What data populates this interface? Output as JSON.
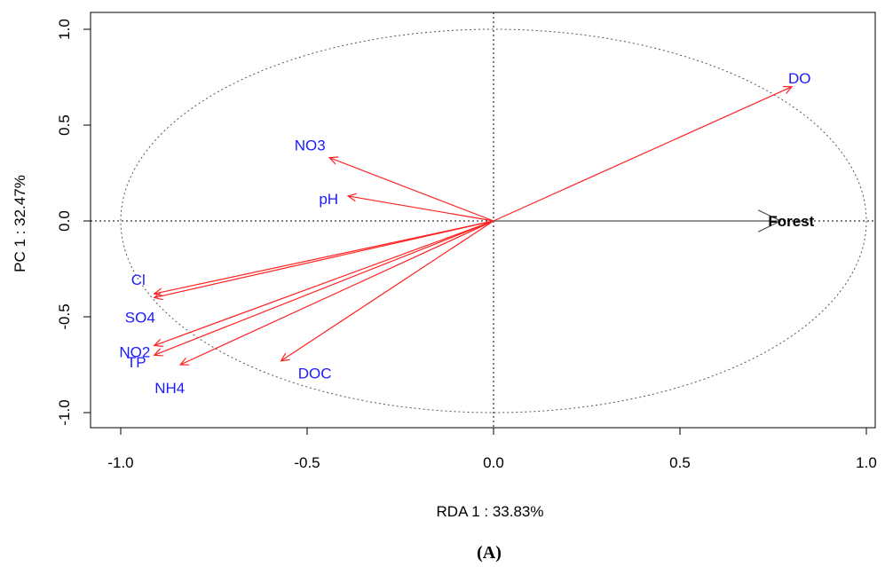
{
  "chart_data": {
    "type": "scatter",
    "subtype": "rda-biplot",
    "xlabel": "RDA 1 : 33.83%",
    "ylabel": "PC 1 : 32.47%",
    "xlim": [
      -1.1,
      1.03
    ],
    "ylim": [
      -1.08,
      1.1
    ],
    "x_ticks": [
      -1.0,
      -0.5,
      0.0,
      0.5,
      1.0
    ],
    "x_tick_labels": [
      "-1.0",
      "-0.5",
      "0.0",
      "0.5",
      "1.0"
    ],
    "y_ticks": [
      -1.0,
      -0.5,
      0.0,
      0.5,
      1.0
    ],
    "y_tick_labels": [
      "-1.0",
      "-0.5",
      "0.0",
      "0.5",
      "1.0"
    ],
    "grid": false,
    "unit_circle": true,
    "reference_lines": {
      "x": 0,
      "y": 0,
      "style": "dotted"
    },
    "response_vectors": [
      {
        "name": "DO",
        "x": 0.8,
        "y": 0.7
      },
      {
        "name": "NO3",
        "x": -0.44,
        "y": 0.33
      },
      {
        "name": "pH",
        "x": -0.39,
        "y": 0.13
      },
      {
        "name": "Cl",
        "x": -0.91,
        "y": -0.38
      },
      {
        "name": "SO4",
        "x": -0.91,
        "y": -0.4
      },
      {
        "name": "NO2",
        "x": -0.91,
        "y": -0.65
      },
      {
        "name": "TP",
        "x": -0.91,
        "y": -0.7
      },
      {
        "name": "NH4",
        "x": -0.84,
        "y": -0.75
      },
      {
        "name": "DOC",
        "x": -0.57,
        "y": -0.73
      }
    ],
    "explanatory_vectors": [
      {
        "name": "Forest",
        "x": 0.77,
        "y": 0.0
      }
    ],
    "colors": {
      "response_arrow": "#ff2020",
      "response_label": "#1a1aff",
      "explanatory_arrow": "#555555",
      "explanatory_label": "#000000"
    }
  },
  "caption": "(A)"
}
